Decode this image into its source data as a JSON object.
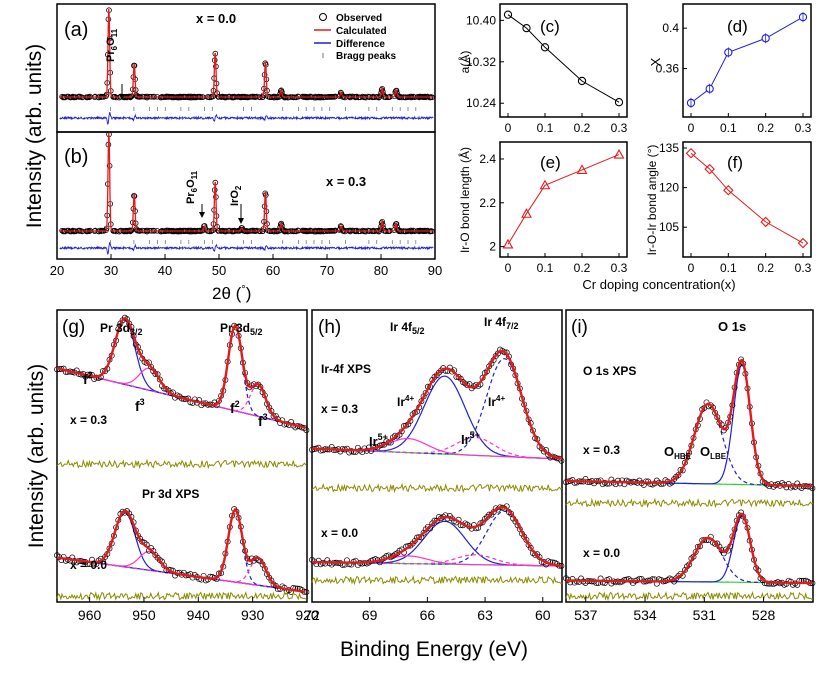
{
  "ui": {
    "left_ylabel": "Intensity (arb. units)",
    "bottom_ylabel": "Intensity (arb. units)",
    "bottom_xlabel": "Binding Energy (eV)",
    "xrd_xlabel_main": "2θ (",
    "xrd_xlabel_deg": "°",
    "xrd_xlabel_close": ")",
    "cr_xlabel": "Cr doping concentration(x)"
  },
  "colors": {
    "observed": "#000000",
    "calculated": "#e31a1c",
    "difference": "#1f1fd6",
    "bragg": "#777777",
    "pink": "#ff33cc",
    "green": "#33cc33",
    "olive": "#8b8b00",
    "blue": "#1f1fd6",
    "red": "#e31a1c"
  },
  "chart_data": [
    {
      "id": "a",
      "type": "line",
      "panel_label": "(a)",
      "composition": "x = 0.0",
      "legend": [
        {
          "label": "Observed",
          "symbol": "circle"
        },
        {
          "label": "Calculated",
          "symbol": "red-line"
        },
        {
          "label": "Difference",
          "symbol": "blue-line"
        },
        {
          "label": "Bragg peaks",
          "symbol": "tick"
        }
      ],
      "annotations": [
        {
          "text": "Pr6O11",
          "main": "Pr",
          "s1": "6",
          "mid": "O",
          "s2": "11",
          "x": 31.5
        }
      ],
      "xlim": [
        20,
        90
      ],
      "peaks": [
        {
          "x": 29.6,
          "h": 1.0
        },
        {
          "x": 34.3,
          "h": 0.38
        },
        {
          "x": 49.3,
          "h": 0.5
        },
        {
          "x": 58.6,
          "h": 0.4
        },
        {
          "x": 61.5,
          "h": 0.08
        },
        {
          "x": 72.6,
          "h": 0.05
        },
        {
          "x": 80.2,
          "h": 0.1
        },
        {
          "x": 82.8,
          "h": 0.08
        }
      ]
    },
    {
      "id": "b",
      "type": "line",
      "panel_label": "(b)",
      "composition": "x = 0.3",
      "annotations": [
        {
          "text": "Pr6O11",
          "main": "Pr",
          "s1": "6",
          "mid": "O",
          "s2": "11",
          "x": 47.3
        },
        {
          "text": "IrO2",
          "main": "IrO",
          "s1": "2",
          "x": 54.2
        }
      ],
      "xlim": [
        20,
        90
      ],
      "xticks": [
        20,
        30,
        40,
        50,
        60,
        70,
        80,
        90
      ],
      "peaks": [
        {
          "x": 29.6,
          "h": 1.0
        },
        {
          "x": 34.3,
          "h": 0.38
        },
        {
          "x": 47.3,
          "h": 0.05
        },
        {
          "x": 49.3,
          "h": 0.5
        },
        {
          "x": 54.2,
          "h": 0.03
        },
        {
          "x": 58.6,
          "h": 0.4
        },
        {
          "x": 61.5,
          "h": 0.08
        },
        {
          "x": 72.6,
          "h": 0.05
        },
        {
          "x": 80.2,
          "h": 0.1
        },
        {
          "x": 82.8,
          "h": 0.08
        }
      ]
    },
    {
      "id": "c",
      "type": "scatter-line",
      "panel_label": "(c)",
      "ylabel": "a(Å)",
      "color": "#000000",
      "marker": "circle",
      "x": [
        0,
        0.05,
        0.1,
        0.2,
        0.3
      ],
      "y": [
        10.411,
        10.385,
        10.348,
        10.283,
        10.242
      ],
      "ylim": [
        10.225,
        10.42
      ],
      "yticks": [
        "10.24",
        "10.32",
        "10.40"
      ]
    },
    {
      "id": "d",
      "type": "scatter-line",
      "panel_label": "(d)",
      "ylabel": "X",
      "color": "#1f1fd6",
      "marker": "circle",
      "x": [
        0,
        0.05,
        0.1,
        0.2,
        0.3
      ],
      "y": [
        0.326,
        0.34,
        0.376,
        0.39,
        0.411
      ],
      "ylim": [
        0.318,
        0.418
      ],
      "yticks": [
        "0.36",
        "0.4"
      ]
    },
    {
      "id": "e",
      "type": "scatter-line",
      "panel_label": "(e)",
      "ylabel": "Ir-O bond length (Å)",
      "color": "#e31a1c",
      "marker": "triangle",
      "x": [
        0,
        0.05,
        0.1,
        0.2,
        0.3
      ],
      "y": [
        2.01,
        2.15,
        2.28,
        2.35,
        2.42
      ],
      "ylim": [
        1.98,
        2.45
      ],
      "yticks": [
        "2",
        "2.2",
        "2.4"
      ],
      "xticks": [
        "0",
        "0.1",
        "0.2",
        "0.3"
      ]
    },
    {
      "id": "f",
      "type": "scatter-line",
      "panel_label": "(f)",
      "ylabel": "Ir-O-Ir bond angle (°)",
      "color": "#e31a1c",
      "marker": "diamond",
      "x": [
        0,
        0.05,
        0.1,
        0.2,
        0.3
      ],
      "y": [
        133,
        127,
        119,
        107,
        99
      ],
      "ylim": [
        96,
        135
      ],
      "yticks": [
        "105",
        "120",
        "135"
      ],
      "xticks": [
        "0",
        "0.1",
        "0.2",
        "0.3"
      ]
    },
    {
      "id": "g",
      "type": "line",
      "panel_label": "(g)",
      "title": "Pr 3d XPS",
      "xlim": [
        966,
        920
      ],
      "xticks": [
        "960",
        "950",
        "940",
        "930",
        "920"
      ],
      "labels": {
        "top_left": "Pr 3d",
        "top_left_sub": "3/2",
        "top_right": "Pr 3d",
        "top_right_sub": "5/2",
        "f2": "f",
        "f3": "f",
        "sup2": "2",
        "sup3": "3"
      },
      "compositions": [
        "x = 0.3",
        "x = 0.0"
      ]
    },
    {
      "id": "h",
      "type": "line",
      "panel_label": "(h)",
      "title": "Ir-4f XPS",
      "xlim": [
        72,
        59
      ],
      "xticks": [
        "72",
        "69",
        "66",
        "63",
        "60"
      ],
      "labels": {
        "f52": "Ir 4f",
        "f52_sub": "5/2",
        "f72": "Ir 4f",
        "f72_sub": "7/2",
        "ir4": "Ir",
        "ir4_sup": "4+",
        "ir5": "Ir",
        "ir5_sup": "5+"
      },
      "compositions": [
        "x = 0.3",
        "x = 0.0"
      ]
    },
    {
      "id": "i",
      "type": "line",
      "panel_label": "(i)",
      "title": "O 1s XPS",
      "xlim": [
        538,
        525.5
      ],
      "xticks": [
        "537",
        "534",
        "531",
        "528"
      ],
      "labels": {
        "o1s": "O 1s",
        "ohbe": "O",
        "ohbe_sub": "HBE",
        "olbe": "O",
        "olbe_sub": "LBE"
      },
      "compositions": [
        "x = 0.3",
        "x = 0.0"
      ]
    }
  ]
}
